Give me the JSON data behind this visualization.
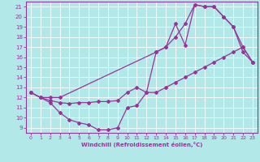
{
  "background_color": "#b3e8e8",
  "line_color": "#993399",
  "xlim": [
    -0.5,
    23.5
  ],
  "ylim": [
    8.5,
    21.5
  ],
  "xticks": [
    0,
    1,
    2,
    3,
    4,
    5,
    6,
    7,
    8,
    9,
    10,
    11,
    12,
    13,
    14,
    15,
    16,
    17,
    18,
    19,
    20,
    21,
    22,
    23
  ],
  "yticks": [
    9,
    10,
    11,
    12,
    13,
    14,
    15,
    16,
    17,
    18,
    19,
    20,
    21
  ],
  "xlabel": "Windchill (Refroidissement éolien,°C)",
  "series1": [
    [
      0,
      12.5
    ],
    [
      1,
      12.0
    ],
    [
      2,
      11.5
    ],
    [
      3,
      10.5
    ],
    [
      4,
      9.8
    ],
    [
      5,
      9.5
    ],
    [
      6,
      9.3
    ],
    [
      7,
      8.8
    ],
    [
      8,
      8.8
    ],
    [
      9,
      9.0
    ],
    [
      10,
      11.0
    ],
    [
      11,
      11.2
    ],
    [
      12,
      12.5
    ],
    [
      13,
      16.5
    ],
    [
      14,
      17.0
    ],
    [
      15,
      19.3
    ],
    [
      16,
      17.2
    ],
    [
      17,
      21.2
    ],
    [
      18,
      21.0
    ],
    [
      19,
      21.0
    ],
    [
      20,
      20.0
    ],
    [
      21,
      19.0
    ],
    [
      22,
      16.5
    ],
    [
      23,
      15.5
    ]
  ],
  "series2": [
    [
      0,
      12.5
    ],
    [
      1,
      12.0
    ],
    [
      2,
      11.7
    ],
    [
      3,
      11.5
    ],
    [
      4,
      11.4
    ],
    [
      5,
      11.5
    ],
    [
      6,
      11.5
    ],
    [
      7,
      11.6
    ],
    [
      8,
      11.6
    ],
    [
      9,
      11.7
    ],
    [
      10,
      12.5
    ],
    [
      11,
      13.0
    ],
    [
      12,
      12.5
    ],
    [
      13,
      12.5
    ],
    [
      14,
      13.0
    ],
    [
      15,
      13.5
    ],
    [
      16,
      14.0
    ],
    [
      17,
      14.5
    ],
    [
      18,
      15.0
    ],
    [
      19,
      15.5
    ],
    [
      20,
      16.0
    ],
    [
      21,
      16.5
    ],
    [
      22,
      17.0
    ],
    [
      23,
      15.5
    ]
  ],
  "series3": [
    [
      0,
      12.5
    ],
    [
      1,
      12.0
    ],
    [
      2,
      12.0
    ],
    [
      3,
      12.0
    ],
    [
      13,
      16.5
    ],
    [
      14,
      17.0
    ],
    [
      15,
      18.0
    ],
    [
      16,
      19.3
    ],
    [
      17,
      21.2
    ],
    [
      18,
      21.0
    ],
    [
      19,
      21.0
    ],
    [
      20,
      20.0
    ],
    [
      21,
      19.0
    ],
    [
      22,
      17.0
    ],
    [
      23,
      15.5
    ]
  ]
}
